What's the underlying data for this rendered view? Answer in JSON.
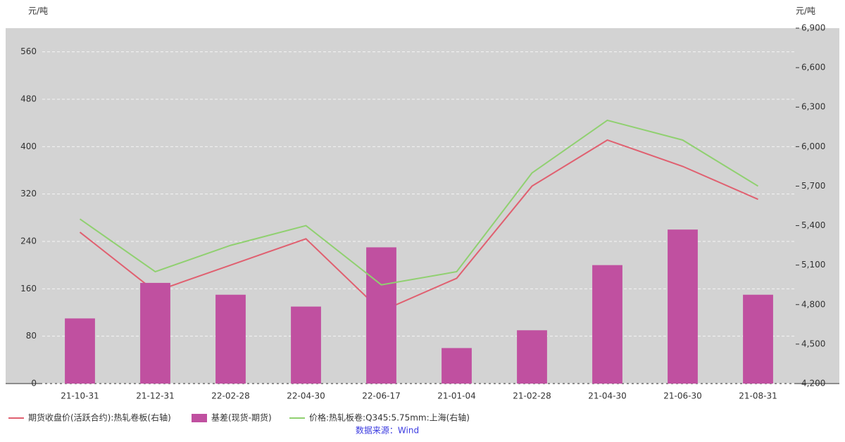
{
  "chart_data": {
    "type": "bar-line",
    "ylabel": "元/吨",
    "y2label": "元/吨",
    "categories": [
      "21-10-31",
      "21-12-31",
      "22-02-28",
      "22-04-30",
      "22-06-17",
      "21-01-04",
      "21-02-28",
      "21-04-30",
      "21-06-30",
      "21-08-31"
    ],
    "series": [
      {
        "name": "期货收盘价(活跃合约):热轧卷板(右轴)",
        "kind": "line",
        "axis": "y2",
        "color": "#e06070",
        "values": [
          5350,
          4900,
          5100,
          5300,
          4750,
          5000,
          5700,
          6050,
          5850,
          5600
        ]
      },
      {
        "name": "基差(现货-期货)",
        "kind": "bar",
        "color": "#c050a0",
        "values": [
          110,
          170,
          150,
          130,
          230,
          60,
          90,
          200,
          260,
          150
        ]
      },
      {
        "name": "价格:热轧板卷:Q345:5.75mm:上海(右轴)",
        "kind": "line",
        "axis": "y2",
        "color": "#90d070",
        "values": [
          5450,
          5050,
          5250,
          5400,
          4950,
          5050,
          5800,
          6200,
          6050,
          5700
        ]
      }
    ],
    "ylim": [
      0,
      600
    ],
    "yticks": [
      0,
      80,
      160,
      240,
      320,
      400,
      480,
      560
    ],
    "y2lim": [
      4200,
      6900
    ],
    "y2ticks": [
      {
        "value": 4200,
        "label": "4,200"
      },
      {
        "value": 4500,
        "label": "4,500"
      },
      {
        "value": 4800,
        "label": "4,800"
      },
      {
        "value": 5100,
        "label": "5,100"
      },
      {
        "value": 5400,
        "label": "5,400"
      },
      {
        "value": 5700,
        "label": "5,700"
      },
      {
        "value": 6000,
        "label": "6,000"
      },
      {
        "value": 6300,
        "label": "6,300"
      },
      {
        "value": 6600,
        "label": "6,600"
      },
      {
        "value": 6900,
        "label": "6,900"
      }
    ],
    "grid": true,
    "source": "数据来源：Wind"
  }
}
